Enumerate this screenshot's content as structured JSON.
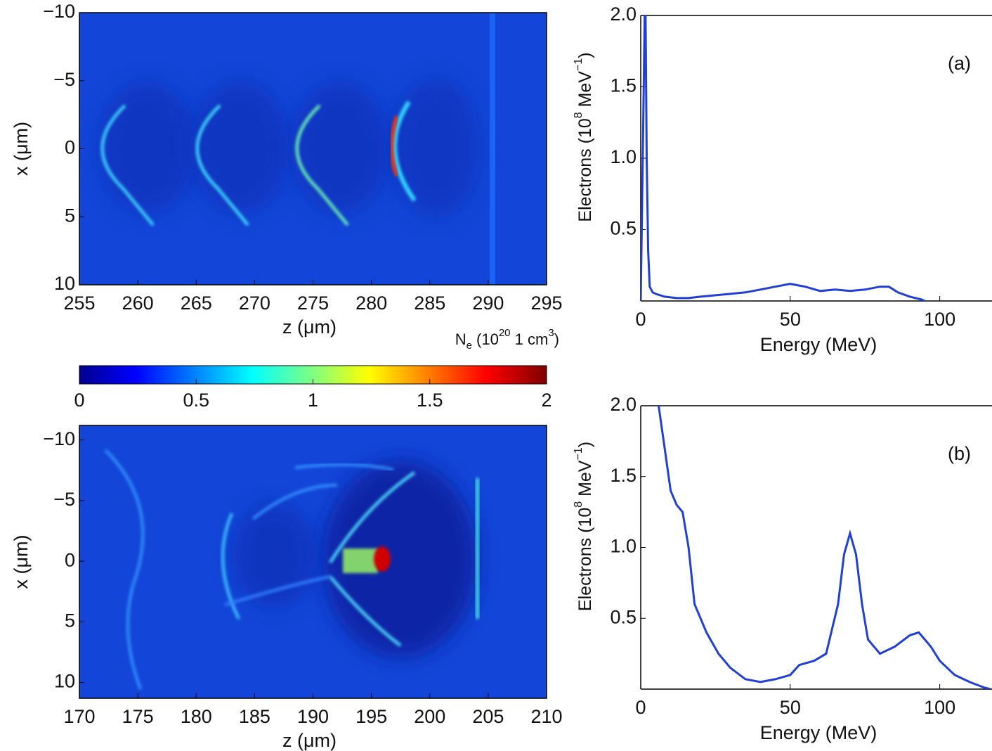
{
  "chart_data": [
    {
      "type": "heatmap",
      "xlabel": "z (μm)",
      "ylabel": "x (μm)",
      "xlim": [
        255,
        295
      ],
      "xticks": [
        255,
        260,
        265,
        270,
        275,
        280,
        285,
        290,
        295
      ],
      "ylim": [
        -10,
        10
      ],
      "y_reversed": true,
      "yticks": [
        {
          "value": -10,
          "label": "−10"
        },
        {
          "value": -5,
          "label": "−5"
        },
        0,
        5,
        10
      ],
      "colormap": "jet",
      "colorbar": {
        "label_parts": [
          "N",
          "e",
          " (10",
          "20",
          " 1 cm",
          "3",
          ")"
        ],
        "clim": [
          0,
          2
        ],
        "ticks": [
          0,
          0.5,
          1,
          1.5,
          2
        ]
      }
    },
    {
      "type": "line",
      "annotation": "(a)",
      "xlabel": "Energy (MeV)",
      "ylabel_parts": [
        "Electrons (10",
        "8",
        " MeV",
        "−1",
        ")"
      ],
      "xlim": [
        0,
        117
      ],
      "xticks": [
        0,
        50,
        100
      ],
      "ylim": [
        0,
        2
      ],
      "yticks": [
        0.5,
        {
          "value": 1,
          "label": "1.0"
        },
        1.5,
        {
          "value": 2,
          "label": "2.0"
        }
      ],
      "series": [
        {
          "color": "#1f3fd6",
          "x": [
            0,
            1,
            1.5,
            2,
            2.5,
            3,
            4,
            5,
            8,
            12,
            16,
            20,
            25,
            30,
            35,
            40,
            45,
            50,
            55,
            60,
            65,
            70,
            75,
            80,
            83,
            86,
            90,
            94,
            95
          ],
          "values": [
            0,
            1.5,
            2.3,
            1.0,
            0.35,
            0.1,
            0.06,
            0.05,
            0.03,
            0.02,
            0.02,
            0.03,
            0.04,
            0.05,
            0.06,
            0.08,
            0.1,
            0.12,
            0.1,
            0.07,
            0.08,
            0.07,
            0.08,
            0.1,
            0.1,
            0.06,
            0.03,
            0.01,
            0
          ]
        }
      ]
    },
    {
      "type": "heatmap",
      "xlabel": "z (μm)",
      "ylabel": "x (μm)",
      "xlim": [
        170,
        210
      ],
      "xticks": [
        170,
        175,
        180,
        185,
        190,
        195,
        200,
        205,
        210
      ],
      "ylim": [
        -11.2,
        11.3
      ],
      "y_reversed": true,
      "yticks": [
        {
          "value": -10,
          "label": "−10"
        },
        {
          "value": -5,
          "label": "−5"
        },
        0,
        5,
        10
      ],
      "colormap": "jet"
    },
    {
      "type": "line",
      "annotation": "(b)",
      "xlabel": "Energy (MeV)",
      "ylabel_parts": [
        "Electrons (10",
        "8",
        " MeV",
        "−1",
        ")"
      ],
      "xlim": [
        0,
        117
      ],
      "xticks": [
        0,
        50,
        100
      ],
      "ylim": [
        0,
        2
      ],
      "yticks": [
        0.5,
        {
          "value": 1,
          "label": "1.0"
        },
        1.5,
        {
          "value": 2,
          "label": "2.0"
        }
      ],
      "series": [
        {
          "color": "#1f3fd6",
          "x": [
            6,
            8,
            10,
            12,
            14,
            16,
            18,
            22,
            26,
            30,
            35,
            40,
            45,
            50,
            53,
            58,
            62,
            66,
            68,
            70,
            72,
            74,
            76,
            80,
            85,
            90,
            93,
            97,
            100,
            105,
            110,
            115,
            117
          ],
          "values": [
            2.0,
            1.7,
            1.4,
            1.3,
            1.25,
            1.0,
            0.6,
            0.4,
            0.25,
            0.15,
            0.07,
            0.05,
            0.07,
            0.1,
            0.17,
            0.2,
            0.25,
            0.6,
            0.95,
            1.1,
            0.95,
            0.6,
            0.35,
            0.25,
            0.3,
            0.38,
            0.4,
            0.3,
            0.2,
            0.1,
            0.05,
            0.01,
            0
          ]
        }
      ]
    }
  ]
}
